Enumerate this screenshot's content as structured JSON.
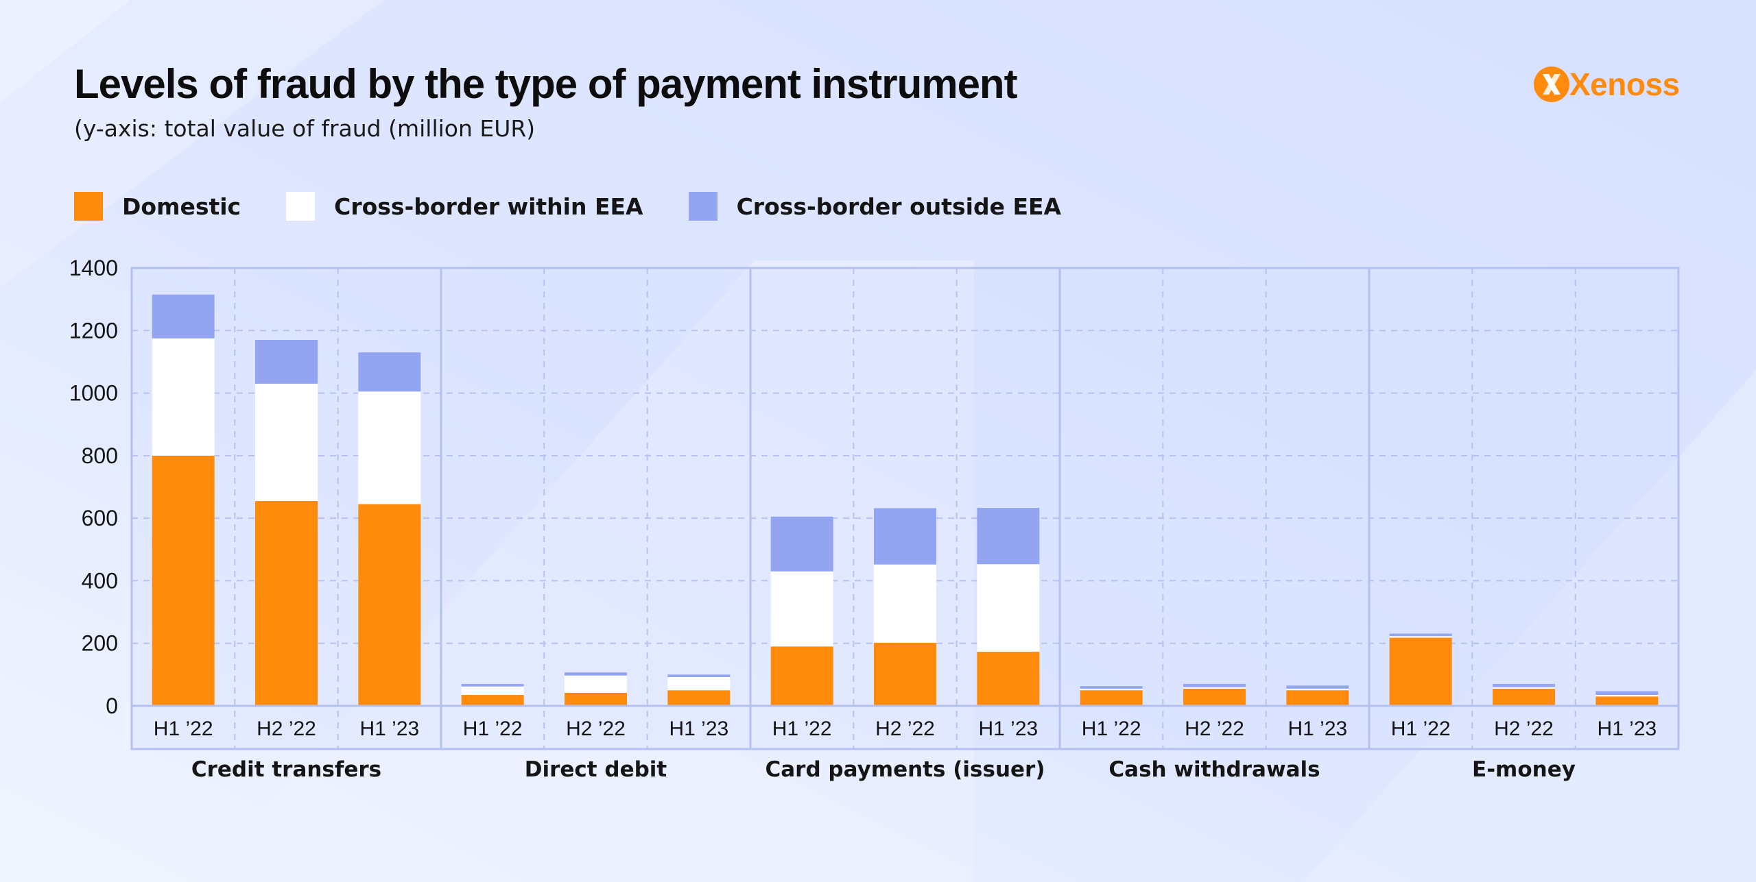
{
  "title": "Levels of fraud by the type of payment instrument",
  "subtitle": "(y-axis: total value of fraud (million EUR)",
  "logo": {
    "text": "Xenoss"
  },
  "colors": {
    "domestic": "#ff8a0c",
    "cross_within": "#ffffff",
    "cross_outside": "#93a4f0",
    "grid": "#b6c2f2",
    "frame": "#b4c0ef",
    "logo": "#ff8a0c"
  },
  "legend": [
    {
      "label": "Domestic",
      "color": "#ff8a0c"
    },
    {
      "label": "Cross-border within EEA",
      "color": "#ffffff"
    },
    {
      "label": "Cross-border outside EEA",
      "color": "#93a4f0"
    }
  ],
  "chart_data": {
    "type": "bar",
    "stacked": true,
    "y_ticks": [
      "0",
      "200",
      "400",
      "600",
      "800",
      "1000",
      "1200",
      "1400"
    ],
    "ylim": [
      0,
      1400
    ],
    "grid": true,
    "legend_position": "top-left",
    "groups": [
      {
        "name": "Credit transfers",
        "categories": [
          "H1 ’22",
          "H2 ’22",
          "H1 ’23"
        ],
        "series": [
          {
            "name": "Domestic",
            "values": [
              800,
              655,
              645
            ]
          },
          {
            "name": "Cross-border within EEA",
            "values": [
              375,
              375,
              360
            ]
          },
          {
            "name": "Cross-border outside EEA",
            "values": [
              140,
              140,
              125
            ]
          }
        ]
      },
      {
        "name": "Direct debit",
        "categories": [
          "H1 ’22",
          "H2 ’22",
          "H1 ’23"
        ],
        "series": [
          {
            "name": "Domestic",
            "values": [
              35,
              42,
              50
            ]
          },
          {
            "name": "Cross-border within EEA",
            "values": [
              27,
              55,
              42
            ]
          },
          {
            "name": "Cross-border outside EEA",
            "values": [
              8,
              10,
              8
            ]
          }
        ]
      },
      {
        "name": "Card payments (issuer)",
        "categories": [
          "H1 ’22",
          "H2 ’22",
          "H1 ’23"
        ],
        "series": [
          {
            "name": "Domestic",
            "values": [
              190,
              202,
              173
            ]
          },
          {
            "name": "Cross-border within EEA",
            "values": [
              240,
              250,
              280
            ]
          },
          {
            "name": "Cross-border outside EEA",
            "values": [
              175,
              180,
              180
            ]
          }
        ]
      },
      {
        "name": "Cash withdrawals",
        "categories": [
          "H1 ’22",
          "H2 ’22",
          "H1 ’23"
        ],
        "series": [
          {
            "name": "Domestic",
            "values": [
              50,
              55,
              50
            ]
          },
          {
            "name": "Cross-border within EEA",
            "values": [
              5,
              5,
              5
            ]
          },
          {
            "name": "Cross-border outside EEA",
            "values": [
              8,
              10,
              10
            ]
          }
        ]
      },
      {
        "name": "E-money",
        "categories": [
          "H1 ’22",
          "H2 ’22",
          "H1 ’23"
        ],
        "series": [
          {
            "name": "Domestic",
            "values": [
              218,
              55,
              30
            ]
          },
          {
            "name": "Cross-border within EEA",
            "values": [
              5,
              5,
              5
            ]
          },
          {
            "name": "Cross-border outside EEA",
            "values": [
              8,
              10,
              12
            ]
          }
        ]
      }
    ]
  }
}
